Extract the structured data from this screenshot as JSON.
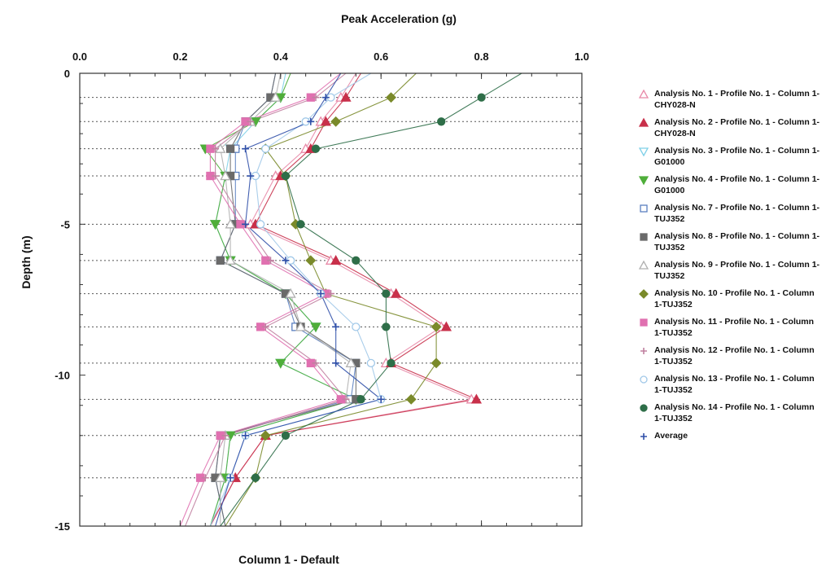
{
  "chart_data": {
    "type": "line",
    "title": "Peak Acceleration (g)",
    "xlabel": "Column 1 - Default",
    "ylabel": "Depth (m)",
    "xlim": [
      0.0,
      1.0
    ],
    "ylim": [
      -15,
      0
    ],
    "x_ticks": [
      "0.0",
      "0.2",
      "0.4",
      "0.6",
      "0.8",
      "1.0"
    ],
    "y_ticks": [
      "0",
      "-5",
      "-10",
      "-15"
    ],
    "depths": [
      0,
      -0.8,
      -1.6,
      -2.5,
      -3.4,
      -5,
      -6.2,
      -7.3,
      -8.4,
      -9.6,
      -10.8,
      -12,
      -13.4,
      -15
    ],
    "grid": "horizontal dotted",
    "legend_position": "right",
    "series": [
      {
        "name": "Analysis No. 1 - Profile No. 1 - Column 1-CHY028-N",
        "color": "#e88aa8",
        "marker": "triangle-open",
        "values": [
          0.55,
          0.52,
          0.48,
          0.45,
          0.39,
          0.34,
          0.5,
          0.62,
          0.72,
          0.61,
          0.78,
          0.37,
          0.31,
          0.26
        ]
      },
      {
        "name": "Analysis No. 2 - Profile No. 1 - Column 1-CHY028-N",
        "color": "#c8304a",
        "marker": "triangle",
        "values": [
          0.56,
          0.53,
          0.49,
          0.46,
          0.4,
          0.35,
          0.51,
          0.63,
          0.73,
          0.62,
          0.79,
          0.37,
          0.31,
          0.26
        ]
      },
      {
        "name": "Analysis No. 3 - Profile No. 1 - Column 1-G01000",
        "color": "#7fd0e8",
        "marker": "triangle-down-open",
        "values": [
          0.41,
          0.4,
          0.35,
          0.3,
          0.29,
          0.27,
          0.3,
          0.41,
          0.47,
          0.4,
          0.55,
          0.3,
          0.29,
          0.26
        ]
      },
      {
        "name": "Analysis No. 4 - Profile No. 1 - Column 1-G01000",
        "color": "#4fae3a",
        "marker": "triangle-down",
        "values": [
          0.42,
          0.4,
          0.35,
          0.25,
          0.29,
          0.27,
          0.3,
          0.41,
          0.47,
          0.4,
          0.55,
          0.3,
          0.29,
          0.26
        ]
      },
      {
        "name": "Analysis No. 7 - Profile No. 1 - Column 1-TUJ352",
        "color": "#5a7fc0",
        "marker": "square-open",
        "values": [
          0.39,
          0.38,
          0.33,
          0.31,
          0.31,
          0.31,
          0.28,
          0.41,
          0.43,
          0.55,
          0.54,
          0.28,
          0.27,
          0.29
        ]
      },
      {
        "name": "Analysis No. 8 - Profile No. 1 - Column 1-TUJ352",
        "color": "#6a6a6a",
        "marker": "square",
        "values": [
          0.39,
          0.38,
          0.33,
          0.3,
          0.3,
          0.31,
          0.28,
          0.41,
          0.44,
          0.55,
          0.55,
          0.28,
          0.27,
          0.29
        ]
      },
      {
        "name": "Analysis No. 9 - Profile No. 1 - Column 1-TUJ352",
        "color": "#b0b0b0",
        "marker": "triangle-open",
        "values": [
          0.4,
          0.39,
          0.34,
          0.28,
          0.29,
          0.3,
          0.3,
          0.42,
          0.44,
          0.54,
          0.53,
          0.29,
          0.28,
          0.28
        ]
      },
      {
        "name": "Analysis No. 10 - Profile No. 1 - Column 1-TUJ352",
        "color": "#7a8a2a",
        "marker": "diamond",
        "values": [
          0.67,
          0.62,
          0.51,
          0.37,
          0.41,
          0.43,
          0.46,
          0.49,
          0.71,
          0.71,
          0.66,
          0.37,
          0.35,
          0.29
        ]
      },
      {
        "name": "Analysis No. 11 - Profile No. 1 - Column 1-TUJ352",
        "color": "#e070b0",
        "marker": "square",
        "values": [
          0.52,
          0.46,
          0.33,
          0.26,
          0.26,
          0.32,
          0.37,
          0.49,
          0.36,
          0.46,
          0.52,
          0.28,
          0.24,
          0.2
        ]
      },
      {
        "name": "Analysis No. 12 - Profile No. 1 - Column 1-TUJ352",
        "color": "#c080a0",
        "marker": "plus",
        "values": [
          0.53,
          0.47,
          0.34,
          0.27,
          0.27,
          0.33,
          0.38,
          0.5,
          0.37,
          0.47,
          0.53,
          0.29,
          0.25,
          0.21
        ]
      },
      {
        "name": "Analysis No. 13 - Profile No. 1 - Column 1-TUJ352",
        "color": "#a0c8e8",
        "marker": "circle-open",
        "values": [
          0.58,
          0.5,
          0.45,
          0.37,
          0.35,
          0.36,
          0.42,
          0.48,
          0.55,
          0.58,
          0.6,
          0.33,
          0.3,
          0.26
        ]
      },
      {
        "name": "Analysis No. 14 - Profile No. 1 - Column 1-TUJ352",
        "color": "#2e6e48",
        "marker": "circle",
        "values": [
          0.88,
          0.8,
          0.72,
          0.47,
          0.41,
          0.44,
          0.55,
          0.61,
          0.61,
          0.62,
          0.56,
          0.41,
          0.35,
          0.28
        ]
      },
      {
        "name": "Average",
        "color": "#2f4fa8",
        "marker": "plus",
        "values": [
          0.52,
          0.49,
          0.46,
          0.33,
          0.34,
          0.33,
          0.41,
          0.48,
          0.51,
          0.51,
          0.6,
          0.33,
          0.3,
          0.27
        ]
      }
    ]
  }
}
